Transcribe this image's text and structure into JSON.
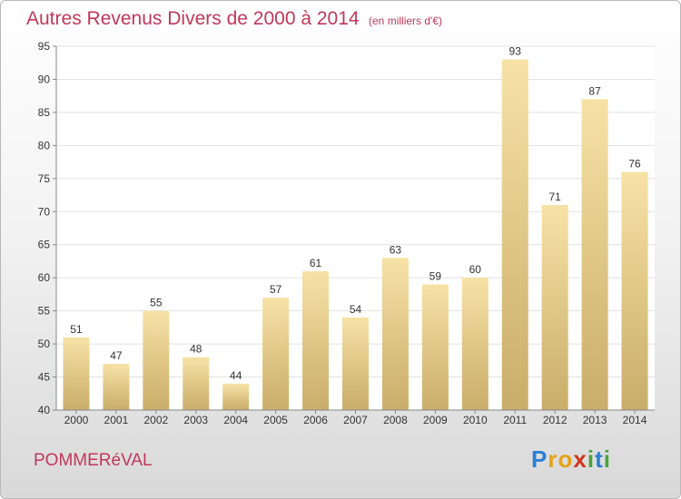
{
  "colors": {
    "title": "#c1385a",
    "bar_light": "#f7e2a6",
    "bar_dark": "#c9ad6a",
    "axis": "#888888",
    "grid": "#e2e2e2"
  },
  "chart_data": {
    "type": "bar",
    "title": "Autres Revenus Divers de 2000 à 2014",
    "subtitle": "(en milliers d'€)",
    "xlabel": "",
    "ylabel": "",
    "categories": [
      "2000",
      "2001",
      "2002",
      "2003",
      "2004",
      "2005",
      "2006",
      "2007",
      "2008",
      "2009",
      "2010",
      "2011",
      "2012",
      "2013",
      "2014"
    ],
    "values": [
      51,
      47,
      55,
      48,
      44,
      57,
      61,
      54,
      63,
      59,
      60,
      93,
      71,
      87,
      76
    ],
    "ylim": [
      40,
      95
    ],
    "yticks": [
      40,
      45,
      50,
      55,
      60,
      65,
      70,
      75,
      80,
      85,
      90,
      95
    ],
    "grid": true,
    "data_labels": true
  },
  "footer": {
    "commune": "POMMERéVAL",
    "logo_letters": [
      "P",
      "r",
      "o",
      "x",
      "i",
      "t",
      "i"
    ],
    "logo_colors": [
      "#2a7fd4",
      "#e6a117",
      "#e6a117",
      "#d0341d",
      "#49a33b",
      "#2a7fd4",
      "#49a33b"
    ]
  }
}
